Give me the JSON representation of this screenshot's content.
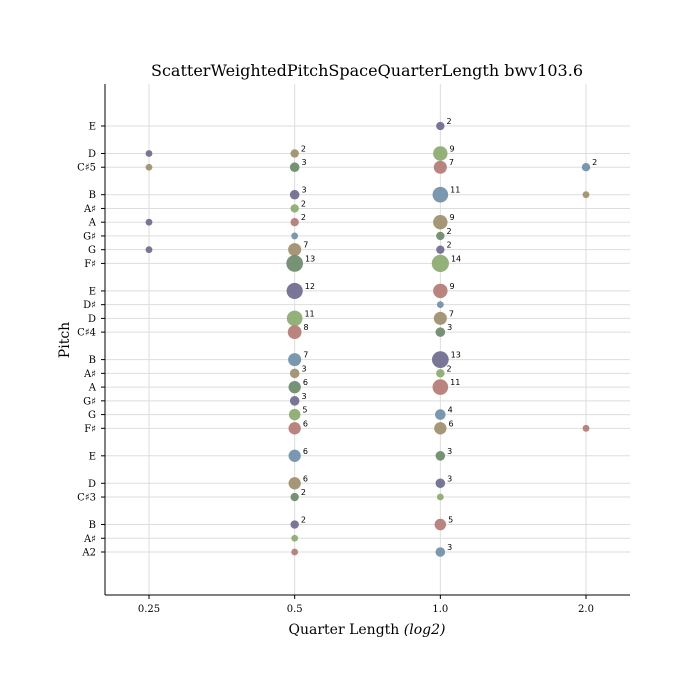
{
  "chart_data": {
    "type": "scatter",
    "title": "ScatterWeightedPitchSpaceQuarterLength bwv103.6",
    "xlabel": "Quarter Length",
    "xlabel_suffix": "(log2)",
    "ylabel": "Pitch",
    "x_scale": "log2",
    "grid": true,
    "x_ticks": [
      {
        "value": 0.25,
        "label": "0.25"
      },
      {
        "value": 0.5,
        "label": "0.5"
      },
      {
        "value": 1.0,
        "label": "1.0"
      },
      {
        "value": 2.0,
        "label": "2.0"
      }
    ],
    "y_ticks": [
      {
        "midi": 45,
        "label": "A2"
      },
      {
        "midi": 46,
        "label": "A♯"
      },
      {
        "midi": 47,
        "label": "B"
      },
      {
        "midi": 49,
        "label": "C♯3"
      },
      {
        "midi": 50,
        "label": "D"
      },
      {
        "midi": 52,
        "label": "E"
      },
      {
        "midi": 54,
        "label": "F♯"
      },
      {
        "midi": 55,
        "label": "G"
      },
      {
        "midi": 56,
        "label": "G♯"
      },
      {
        "midi": 57,
        "label": "A"
      },
      {
        "midi": 58,
        "label": "A♯"
      },
      {
        "midi": 59,
        "label": "B"
      },
      {
        "midi": 61,
        "label": "C♯4"
      },
      {
        "midi": 62,
        "label": "D"
      },
      {
        "midi": 63,
        "label": "D♯"
      },
      {
        "midi": 64,
        "label": "E"
      },
      {
        "midi": 66,
        "label": "F♯"
      },
      {
        "midi": 67,
        "label": "G"
      },
      {
        "midi": 68,
        "label": "G♯"
      },
      {
        "midi": 69,
        "label": "A"
      },
      {
        "midi": 70,
        "label": "A♯"
      },
      {
        "midi": 71,
        "label": "B"
      },
      {
        "midi": 73,
        "label": "C♯5"
      },
      {
        "midi": 74,
        "label": "D"
      },
      {
        "midi": 76,
        "label": "E"
      }
    ],
    "colors": [
      "#6f6a8e",
      "#8aaa6e",
      "#b47a74",
      "#6f8fa8",
      "#9e8f6a",
      "#6a8a6a"
    ],
    "points": [
      {
        "x": 0.25,
        "midi": 74,
        "count": 1,
        "color": "#6f6a8e",
        "label": ""
      },
      {
        "x": 0.25,
        "midi": 73,
        "count": 1,
        "color": "#9e8f6a",
        "label": ""
      },
      {
        "x": 0.25,
        "midi": 69,
        "count": 1,
        "color": "#6f6a8e",
        "label": ""
      },
      {
        "x": 0.25,
        "midi": 67,
        "count": 1,
        "color": "#6f6a8e",
        "label": ""
      },
      {
        "x": 0.5,
        "midi": 74,
        "count": 2,
        "color": "#9e8f6a",
        "label": "2"
      },
      {
        "x": 0.5,
        "midi": 73,
        "count": 3,
        "color": "#6a8a6a",
        "label": "3"
      },
      {
        "x": 0.5,
        "midi": 71,
        "count": 3,
        "color": "#6f6a8e",
        "label": "3"
      },
      {
        "x": 0.5,
        "midi": 70,
        "count": 2,
        "color": "#8aaa6e",
        "label": "2"
      },
      {
        "x": 0.5,
        "midi": 69,
        "count": 2,
        "color": "#b47a74",
        "label": "2"
      },
      {
        "x": 0.5,
        "midi": 68,
        "count": 1,
        "color": "#6f8fa8",
        "label": ""
      },
      {
        "x": 0.5,
        "midi": 67,
        "count": 7,
        "color": "#9e8f6a",
        "label": "7"
      },
      {
        "x": 0.5,
        "midi": 66,
        "count": 13,
        "color": "#6a8a6a",
        "label": "13"
      },
      {
        "x": 0.5,
        "midi": 64,
        "count": 12,
        "color": "#6f6a8e",
        "label": "12"
      },
      {
        "x": 0.5,
        "midi": 62,
        "count": 11,
        "color": "#8aaa6e",
        "label": "11"
      },
      {
        "x": 0.5,
        "midi": 61,
        "count": 8,
        "color": "#b47a74",
        "label": "8"
      },
      {
        "x": 0.5,
        "midi": 59,
        "count": 7,
        "color": "#6f8fa8",
        "label": "7"
      },
      {
        "x": 0.5,
        "midi": 58,
        "count": 3,
        "color": "#9e8f6a",
        "label": "3"
      },
      {
        "x": 0.5,
        "midi": 57,
        "count": 6,
        "color": "#6a8a6a",
        "label": "6"
      },
      {
        "x": 0.5,
        "midi": 56,
        "count": 3,
        "color": "#6f6a8e",
        "label": "3"
      },
      {
        "x": 0.5,
        "midi": 55,
        "count": 5,
        "color": "#8aaa6e",
        "label": "5"
      },
      {
        "x": 0.5,
        "midi": 54,
        "count": 6,
        "color": "#b47a74",
        "label": "6"
      },
      {
        "x": 0.5,
        "midi": 52,
        "count": 6,
        "color": "#6f8fa8",
        "label": "6"
      },
      {
        "x": 0.5,
        "midi": 50,
        "count": 6,
        "color": "#9e8f6a",
        "label": "6"
      },
      {
        "x": 0.5,
        "midi": 49,
        "count": 2,
        "color": "#6a8a6a",
        "label": "2"
      },
      {
        "x": 0.5,
        "midi": 47,
        "count": 2,
        "color": "#6f6a8e",
        "label": "2"
      },
      {
        "x": 0.5,
        "midi": 46,
        "count": 1,
        "color": "#8aaa6e",
        "label": ""
      },
      {
        "x": 0.5,
        "midi": 45,
        "count": 1,
        "color": "#b47a74",
        "label": ""
      },
      {
        "x": 1.0,
        "midi": 76,
        "count": 2,
        "color": "#6f6a8e",
        "label": "2"
      },
      {
        "x": 1.0,
        "midi": 74,
        "count": 9,
        "color": "#8aaa6e",
        "label": "9"
      },
      {
        "x": 1.0,
        "midi": 73,
        "count": 7,
        "color": "#b47a74",
        "label": "7"
      },
      {
        "x": 1.0,
        "midi": 71,
        "count": 11,
        "color": "#6f8fa8",
        "label": "11"
      },
      {
        "x": 1.0,
        "midi": 69,
        "count": 9,
        "color": "#9e8f6a",
        "label": "9"
      },
      {
        "x": 1.0,
        "midi": 68,
        "count": 2,
        "color": "#6a8a6a",
        "label": "2"
      },
      {
        "x": 1.0,
        "midi": 67,
        "count": 2,
        "color": "#6f6a8e",
        "label": "2"
      },
      {
        "x": 1.0,
        "midi": 66,
        "count": 14,
        "color": "#8aaa6e",
        "label": "14"
      },
      {
        "x": 1.0,
        "midi": 64,
        "count": 9,
        "color": "#b47a74",
        "label": "9"
      },
      {
        "x": 1.0,
        "midi": 63,
        "count": 1,
        "color": "#6f8fa8",
        "label": ""
      },
      {
        "x": 1.0,
        "midi": 62,
        "count": 7,
        "color": "#9e8f6a",
        "label": "7"
      },
      {
        "x": 1.0,
        "midi": 61,
        "count": 3,
        "color": "#6a8a6a",
        "label": "3"
      },
      {
        "x": 1.0,
        "midi": 59,
        "count": 13,
        "color": "#6f6a8e",
        "label": "13"
      },
      {
        "x": 1.0,
        "midi": 58,
        "count": 2,
        "color": "#8aaa6e",
        "label": "2"
      },
      {
        "x": 1.0,
        "midi": 57,
        "count": 11,
        "color": "#b47a74",
        "label": "11"
      },
      {
        "x": 1.0,
        "midi": 55,
        "count": 4,
        "color": "#6f8fa8",
        "label": "4"
      },
      {
        "x": 1.0,
        "midi": 54,
        "count": 6,
        "color": "#9e8f6a",
        "label": "6"
      },
      {
        "x": 1.0,
        "midi": 52,
        "count": 3,
        "color": "#6a8a6a",
        "label": "3"
      },
      {
        "x": 1.0,
        "midi": 50,
        "count": 3,
        "color": "#6f6a8e",
        "label": "3"
      },
      {
        "x": 1.0,
        "midi": 49,
        "count": 1,
        "color": "#8aaa6e",
        "label": ""
      },
      {
        "x": 1.0,
        "midi": 47,
        "count": 5,
        "color": "#b47a74",
        "label": "5"
      },
      {
        "x": 1.0,
        "midi": 45,
        "count": 3,
        "color": "#6f8fa8",
        "label": "3"
      },
      {
        "x": 2.0,
        "midi": 73,
        "count": 2,
        "color": "#6f8fa8",
        "label": "2"
      },
      {
        "x": 2.0,
        "midi": 71,
        "count": 1,
        "color": "#9e8f6a",
        "label": ""
      },
      {
        "x": 2.0,
        "midi": 54,
        "count": 1,
        "color": "#b47a74",
        "label": ""
      }
    ]
  }
}
